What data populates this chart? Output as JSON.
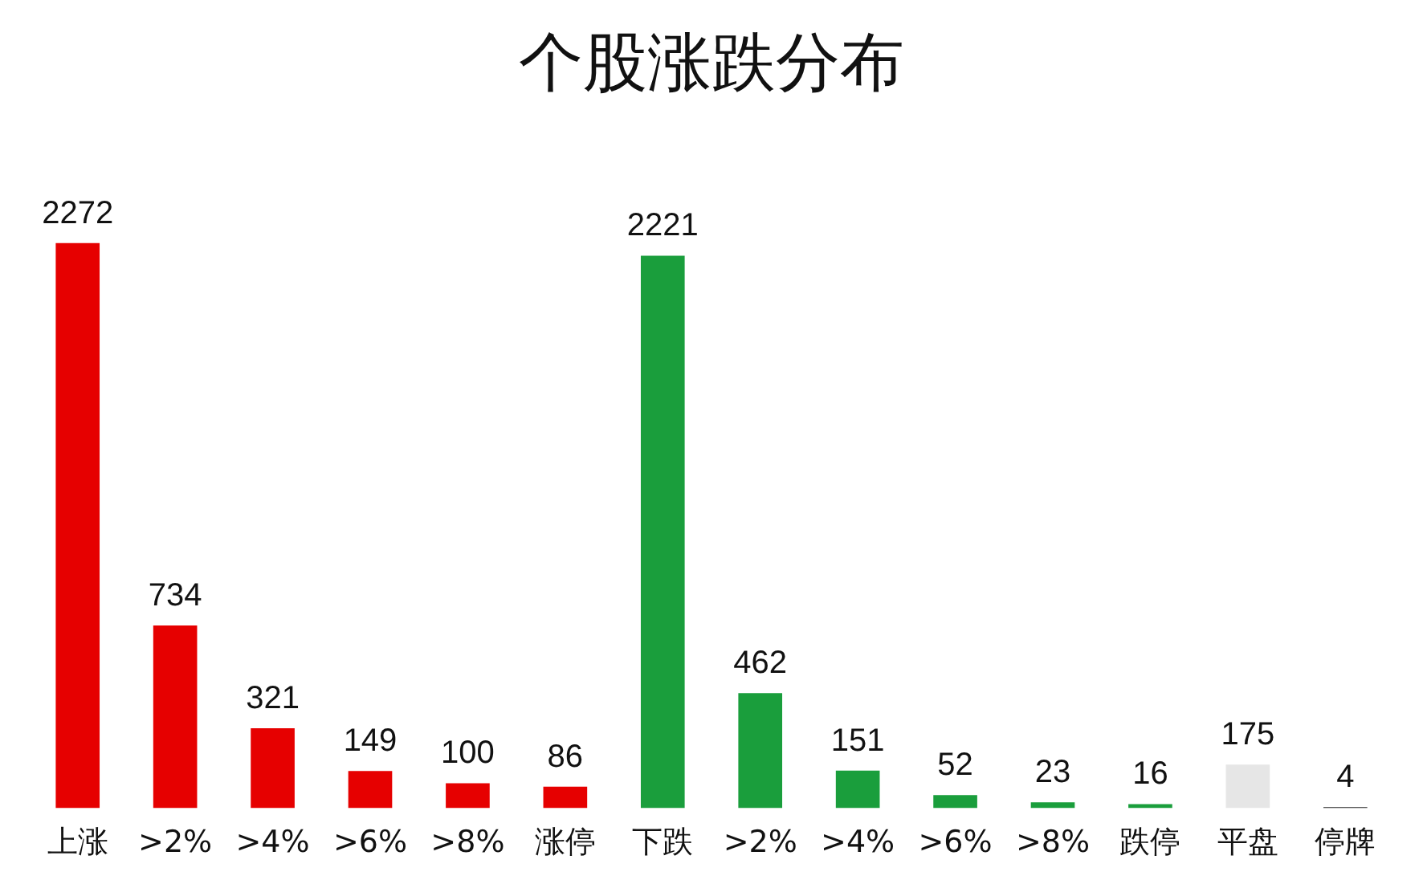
{
  "chart_data": {
    "type": "bar",
    "title": "个股涨跌分布",
    "categories": [
      "上涨",
      ">2%",
      ">4%",
      ">6%",
      ">8%",
      "涨停",
      "下跌",
      ">2%",
      ">4%",
      ">6%",
      ">8%",
      "跌停",
      "平盘",
      "停牌"
    ],
    "values": [
      2272,
      734,
      321,
      149,
      100,
      86,
      2221,
      462,
      151,
      52,
      23,
      16,
      175,
      4
    ],
    "colors": [
      "#e60000",
      "#e60000",
      "#e60000",
      "#e60000",
      "#e60000",
      "#e60000",
      "#1a9e3c",
      "#1a9e3c",
      "#1a9e3c",
      "#1a9e3c",
      "#1a9e3c",
      "#1a9e3c",
      "#e6e6e6",
      "#222222"
    ],
    "data_labels": true
  }
}
